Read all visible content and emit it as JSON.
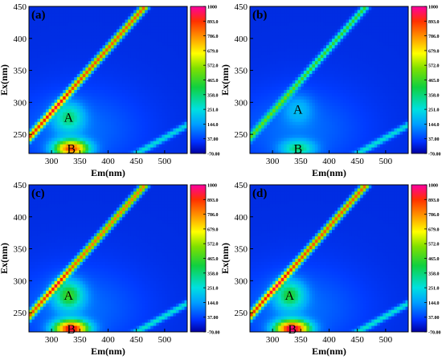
{
  "chart_data": [
    {
      "type": "heatmap",
      "panel": "(a)",
      "xlabel": "Em(nm)",
      "ylabel": "Ex(nm)",
      "xticks": [
        300,
        350,
        400,
        450,
        500
      ],
      "yticks": [
        250,
        300,
        350,
        400,
        450
      ],
      "xlim": [
        260,
        540
      ],
      "ylim": [
        220,
        450
      ],
      "colorbar": [
        "1000",
        "893.0",
        "786.0",
        "679.0",
        "572.0",
        "465.0",
        "358.0",
        "251.0",
        "144.0",
        "37.00",
        "-70.00"
      ],
      "peaks": [
        {
          "label": "A",
          "em": 330,
          "ex": 277,
          "intensity": 251
        },
        {
          "label": "B",
          "em": 335,
          "ex": 228,
          "intensity": 786
        }
      ],
      "scatter_intensity": 800,
      "second_order_intensity": 220
    },
    {
      "type": "heatmap",
      "panel": "(b)",
      "xlabel": "Em(nm)",
      "ylabel": "Ex(nm)",
      "xticks": [
        300,
        350,
        400,
        450,
        500
      ],
      "yticks": [
        250,
        300,
        350,
        400,
        450
      ],
      "xlim": [
        260,
        540
      ],
      "ylim": [
        220,
        450
      ],
      "colorbar": [
        "1000",
        "893.0",
        "786.0",
        "679.0",
        "572.0",
        "465.0",
        "358.0",
        "251.0",
        "144.0",
        "37.00",
        "-70.00"
      ],
      "peaks": [
        {
          "label": "A",
          "em": 345,
          "ex": 290,
          "intensity": 110
        },
        {
          "label": "B",
          "em": 345,
          "ex": 228,
          "intensity": 260
        }
      ],
      "scatter_intensity": 380,
      "second_order_intensity": 230
    },
    {
      "type": "heatmap",
      "panel": "(c)",
      "xlabel": "Em(nm)",
      "ylabel": "Ex(nm)",
      "xticks": [
        300,
        350,
        400,
        450,
        500
      ],
      "yticks": [
        250,
        300,
        350,
        400,
        450
      ],
      "xlim": [
        260,
        540
      ],
      "ylim": [
        220,
        450
      ],
      "colorbar": [
        "1000",
        "893.0",
        "786.0",
        "679.0",
        "572.0",
        "465.0",
        "358.0",
        "251.0",
        "144.0",
        "37.00",
        "-70.00"
      ],
      "peaks": [
        {
          "label": "A",
          "em": 330,
          "ex": 278,
          "intensity": 330
        },
        {
          "label": "B",
          "em": 335,
          "ex": 225,
          "intensity": 900
        }
      ],
      "scatter_intensity": 760,
      "second_order_intensity": 240
    },
    {
      "type": "heatmap",
      "panel": "(d)",
      "xlabel": "Em(nm)",
      "ylabel": "Ex(nm)",
      "xticks": [
        300,
        350,
        400,
        450,
        500
      ],
      "yticks": [
        250,
        300,
        350,
        400,
        450
      ],
      "xlim": [
        260,
        540
      ],
      "ylim": [
        220,
        450
      ],
      "colorbar": [
        "1000",
        "893.0",
        "786.0",
        "679.0",
        "572.0",
        "465.0",
        "358.0",
        "251.0",
        "144.0",
        "37.00",
        "-70.00"
      ],
      "peaks": [
        {
          "label": "A",
          "em": 330,
          "ex": 278,
          "intensity": 300
        },
        {
          "label": "B",
          "em": 335,
          "ex": 225,
          "intensity": 950
        }
      ],
      "scatter_intensity": 800,
      "second_order_intensity": 240
    }
  ]
}
